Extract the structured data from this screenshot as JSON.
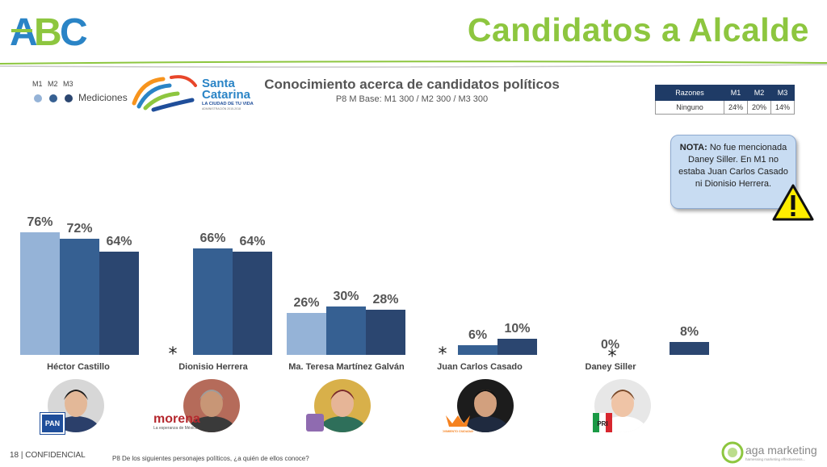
{
  "header": {
    "brand": "ABC",
    "title": "Candidatos a Alcalde"
  },
  "legend": {
    "series": [
      "M1",
      "M2",
      "M3"
    ],
    "label": "Mediciones"
  },
  "sponsor_logo": {
    "line1": "Santa",
    "line2": "Catarina",
    "tagline": "LA CIUDAD DE TU VIDA",
    "small": "ADMINISTRACIÓN 2015-2018"
  },
  "chart_meta": {
    "title": "Conocimiento acerca de candidatos políticos",
    "subtitle": "P8 M Base: M1 300 / M2 300 / M3 300"
  },
  "reasons_table": {
    "headers": [
      "Razones",
      "M1",
      "M2",
      "M3"
    ],
    "rows": [
      [
        "Ninguno",
        "24%",
        "20%",
        "14%"
      ]
    ]
  },
  "note": {
    "prefix": "NOTA:",
    "text": "No fue mencionada Daney Siller. En M1 no estaba Juan Carlos Casado ni Dionisio Herrera."
  },
  "chart_data": {
    "type": "bar",
    "title": "Conocimiento acerca de candidatos políticos",
    "categories": [
      "Héctor Castillo",
      "Dionisio Herrera",
      "Ma. Teresa Martínez Galván",
      "Juan Carlos Casado",
      "Daney Siller"
    ],
    "series": [
      {
        "name": "M1",
        "values": [
          76,
          null,
          26,
          null,
          0
        ]
      },
      {
        "name": "M2",
        "values": [
          72,
          66,
          30,
          6,
          null
        ]
      },
      {
        "name": "M3",
        "values": [
          64,
          64,
          28,
          10,
          8
        ]
      }
    ],
    "value_labels": [
      [
        "76%",
        "72%",
        "64%"
      ],
      [
        "",
        "66%",
        "64%"
      ],
      [
        "26%",
        "30%",
        "28%"
      ],
      [
        "",
        "6%",
        "10%"
      ],
      [
        "0%",
        "",
        "8%"
      ]
    ],
    "asterisks": [
      false,
      true,
      false,
      true,
      true
    ],
    "asterisk_symbol": "*",
    "colors": [
      "#95b3d7",
      "#366092",
      "#2b4670"
    ],
    "ylim": [
      0,
      100
    ]
  },
  "candidates": [
    {
      "name": "Héctor Castillo",
      "party": "PAN"
    },
    {
      "name": "Dionisio Herrera",
      "party": "morena",
      "party_sub": "La esperanza de México"
    },
    {
      "name": "Ma. Teresa Martínez Galván",
      "party": ""
    },
    {
      "name": "Juan Carlos Casado",
      "party": "MOVIMIENTO CIUDADANO"
    },
    {
      "name": "Daney Siller",
      "party": "PRI"
    }
  ],
  "footer": {
    "page": "18",
    "confidential": "| CONFIDENCIAL",
    "question": "P8 De los siguientes personajes políticos, ¿a quién de ellos conoce?",
    "agency": "aga marketing",
    "agency_tag": "harnessing marketing effectiveness..."
  }
}
